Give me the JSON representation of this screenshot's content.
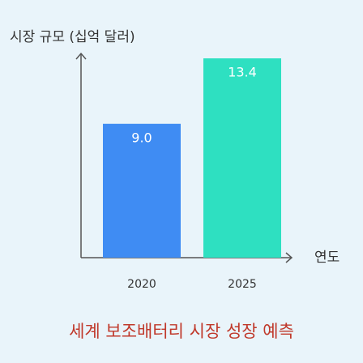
{
  "chart_data": {
    "type": "bar",
    "title": "세계 보조배터리 시장 성장 예측",
    "y_label": "시장 규모 (십억 달러)",
    "x_label": "연도",
    "categories": [
      "2020",
      "2025"
    ],
    "values": [
      9.0,
      13.4
    ],
    "value_labels": [
      "9.0",
      "13.4"
    ],
    "colors": [
      "#3f8cf3",
      "#2ee0c1"
    ],
    "ylim": [
      0,
      14
    ]
  }
}
